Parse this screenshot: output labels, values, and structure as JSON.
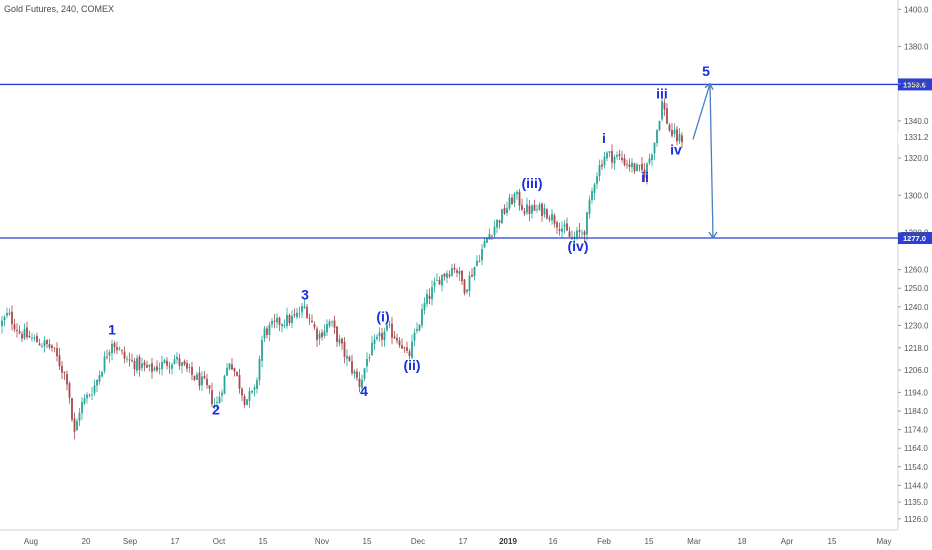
{
  "header": {
    "title": "Gold Futures, 240, COMEX"
  },
  "colors": {
    "up": "#26a69a",
    "down": "#a84a4a",
    "level_line": "#2b3fd6",
    "wave_label": "#1a2ee0",
    "arrow": "#4a7fc0",
    "axis": "#555555"
  },
  "chart_data": {
    "type": "candlestick",
    "title": "Gold Futures, 240, COMEX",
    "ylim": [
      1120,
      1405
    ],
    "y_scale": "linear",
    "y_ticks": [
      "1400.0",
      "1380.0",
      "1360.0",
      "1340.0",
      "1320.0",
      "1300.0",
      "1280.0",
      "1260.0",
      "1250.0",
      "1240.0",
      "1230.0",
      "1218.0",
      "1206.0",
      "1194.0",
      "1184.0",
      "1174.0",
      "1164.0",
      "1154.0",
      "1144.0",
      "1135.0",
      "1126.0"
    ],
    "x_ticks": [
      {
        "label": "Aug",
        "bold": false
      },
      {
        "label": "20",
        "bold": false
      },
      {
        "label": "Sep",
        "bold": false
      },
      {
        "label": "17",
        "bold": false
      },
      {
        "label": "Oct",
        "bold": false
      },
      {
        "label": "15",
        "bold": false
      },
      {
        "label": "Nov",
        "bold": false
      },
      {
        "label": "15",
        "bold": false
      },
      {
        "label": "Dec",
        "bold": false
      },
      {
        "label": "17",
        "bold": false
      },
      {
        "label": "2019",
        "bold": true
      },
      {
        "label": "16",
        "bold": false
      },
      {
        "label": "Feb",
        "bold": false
      },
      {
        "label": "15",
        "bold": false
      },
      {
        "label": "Mar",
        "bold": false
      },
      {
        "label": "18",
        "bold": false
      },
      {
        "label": "Apr",
        "bold": false
      },
      {
        "label": "15",
        "bold": false
      },
      {
        "label": "May",
        "bold": false
      }
    ],
    "anchors": [
      [
        0,
        1230
      ],
      [
        8,
        1236
      ],
      [
        20,
        1226
      ],
      [
        35,
        1222
      ],
      [
        52,
        1218
      ],
      [
        68,
        1200
      ],
      [
        74,
        1170
      ],
      [
        80,
        1186
      ],
      [
        95,
        1198
      ],
      [
        112,
        1222
      ],
      [
        125,
        1212
      ],
      [
        150,
        1206
      ],
      [
        175,
        1212
      ],
      [
        190,
        1204
      ],
      [
        205,
        1198
      ],
      [
        216,
        1186
      ],
      [
        230,
        1212
      ],
      [
        245,
        1190
      ],
      [
        255,
        1194
      ],
      [
        263,
        1226
      ],
      [
        280,
        1232
      ],
      [
        295,
        1234
      ],
      [
        305,
        1240
      ],
      [
        318,
        1224
      ],
      [
        330,
        1232
      ],
      [
        345,
        1214
      ],
      [
        360,
        1198
      ],
      [
        368,
        1214
      ],
      [
        378,
        1222
      ],
      [
        388,
        1228
      ],
      [
        400,
        1222
      ],
      [
        408,
        1212
      ],
      [
        416,
        1226
      ],
      [
        425,
        1242
      ],
      [
        440,
        1256
      ],
      [
        455,
        1262
      ],
      [
        465,
        1250
      ],
      [
        478,
        1266
      ],
      [
        490,
        1280
      ],
      [
        500,
        1288
      ],
      [
        515,
        1300
      ],
      [
        525,
        1292
      ],
      [
        545,
        1292
      ],
      [
        560,
        1284
      ],
      [
        572,
        1276
      ],
      [
        585,
        1282
      ],
      [
        595,
        1310
      ],
      [
        605,
        1322
      ],
      [
        620,
        1320
      ],
      [
        636,
        1314
      ],
      [
        645,
        1312
      ],
      [
        655,
        1330
      ],
      [
        662,
        1350
      ],
      [
        670,
        1334
      ],
      [
        678,
        1330
      ],
      [
        684,
        1331.2
      ]
    ],
    "levels": [
      {
        "value": 1359.6,
        "label": "1359.6"
      },
      {
        "value": 1277.0,
        "label": "1277.0"
      }
    ],
    "last_price": {
      "value": 1331.2,
      "label": "1331.2"
    },
    "wave_labels": [
      {
        "text": "1",
        "x_index": 112,
        "price": 1225
      },
      {
        "text": "2",
        "x_index": 216,
        "price": 1182
      },
      {
        "text": "3",
        "x_index": 305,
        "price": 1244
      },
      {
        "text": "4",
        "x_index": 364,
        "price": 1192
      },
      {
        "text": "(i)",
        "x_index": 383,
        "price": 1232
      },
      {
        "text": "(ii)",
        "x_index": 412,
        "price": 1206
      },
      {
        "text": "(iii)",
        "x_index": 532,
        "price": 1304
      },
      {
        "text": "(iv)",
        "x_index": 578,
        "price": 1270
      },
      {
        "text": "i",
        "x_index": 604,
        "price": 1328
      },
      {
        "text": "ii",
        "x_index": 645,
        "price": 1307
      },
      {
        "text": "iii",
        "x_index": 662,
        "price": 1352
      },
      {
        "text": "iv",
        "x_index": 676,
        "price": 1322
      },
      {
        "text": "5",
        "x_index": 706,
        "price": 1364
      }
    ],
    "projection": [
      {
        "x_index": 693,
        "price": 1330
      },
      {
        "x_index": 710,
        "price": 1360
      },
      {
        "x_index": 713,
        "price": 1277
      }
    ]
  }
}
